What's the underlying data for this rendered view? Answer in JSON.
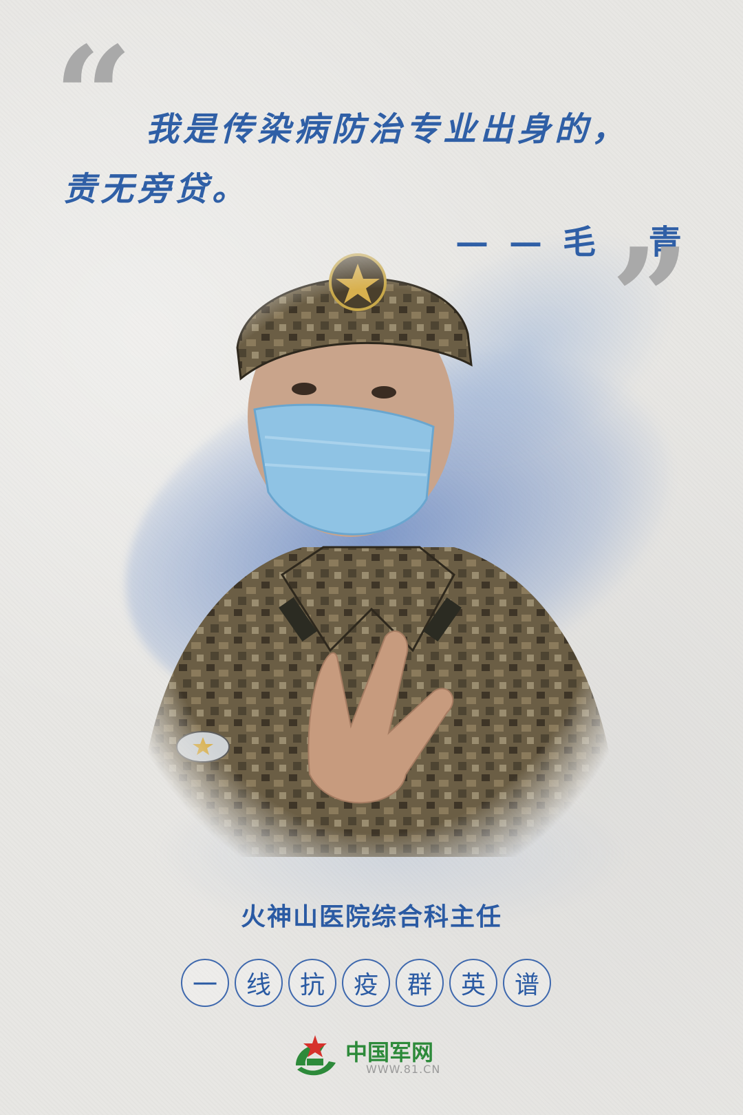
{
  "quote": {
    "line1": "我是传染病防治专业出身的，",
    "line2": "责无旁贷。",
    "author": "——毛 青"
  },
  "title": "火神山医院综合科主任",
  "series": [
    "一",
    "线",
    "抗",
    "疫",
    "群",
    "英",
    "谱"
  ],
  "logo": {
    "name": "中国军网",
    "url": "WWW.81.CN"
  },
  "colors": {
    "accent_blue": "#2f5fa6",
    "quote_gray": "#a9a9a9",
    "logo_green": "#2d8a3a"
  }
}
